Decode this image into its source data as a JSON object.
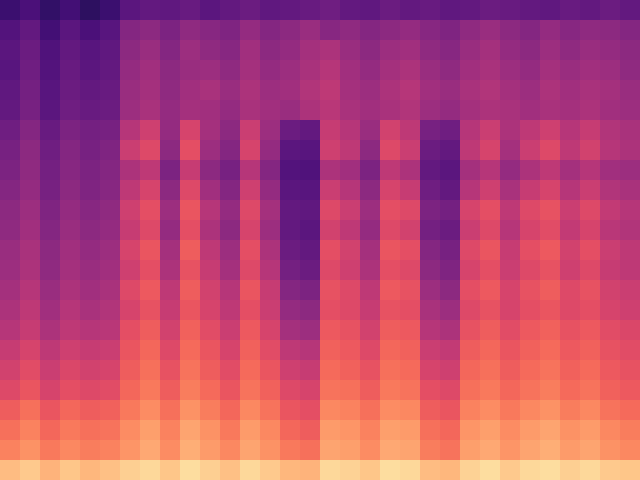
{
  "chart_data": {
    "type": "heatmap",
    "color": "magma",
    "tick_labels": false,
    "color_range": [
      0,
      1
    ],
    "cells": [
      [
        0.2,
        0.24,
        0.18,
        0.22,
        0.17,
        0.2,
        0.28,
        0.3,
        0.29,
        0.31,
        0.28,
        0.3,
        0.32,
        0.29,
        0.3,
        0.31,
        0.33,
        0.3,
        0.29,
        0.32,
        0.3,
        0.31,
        0.29,
        0.3,
        0.32,
        0.31,
        0.3,
        0.29,
        0.31,
        0.3,
        0.32,
        0.3
      ],
      [
        0.26,
        0.3,
        0.22,
        0.28,
        0.24,
        0.27,
        0.38,
        0.4,
        0.36,
        0.41,
        0.39,
        0.37,
        0.42,
        0.38,
        0.4,
        0.43,
        0.39,
        0.41,
        0.38,
        0.4,
        0.42,
        0.39,
        0.37,
        0.41,
        0.43,
        0.4,
        0.38,
        0.42,
        0.39,
        0.41,
        0.4,
        0.38
      ],
      [
        0.28,
        0.32,
        0.25,
        0.3,
        0.27,
        0.29,
        0.4,
        0.43,
        0.38,
        0.44,
        0.41,
        0.39,
        0.45,
        0.4,
        0.42,
        0.46,
        0.48,
        0.43,
        0.4,
        0.44,
        0.45,
        0.41,
        0.39,
        0.43,
        0.46,
        0.42,
        0.4,
        0.44,
        0.41,
        0.43,
        0.42,
        0.4
      ],
      [
        0.27,
        0.33,
        0.26,
        0.31,
        0.28,
        0.3,
        0.42,
        0.45,
        0.4,
        0.43,
        0.44,
        0.41,
        0.46,
        0.42,
        0.44,
        0.47,
        0.5,
        0.45,
        0.42,
        0.46,
        0.48,
        0.43,
        0.41,
        0.45,
        0.47,
        0.44,
        0.42,
        0.46,
        0.43,
        0.45,
        0.44,
        0.41
      ],
      [
        0.29,
        0.34,
        0.27,
        0.32,
        0.3,
        0.31,
        0.43,
        0.46,
        0.41,
        0.45,
        0.47,
        0.43,
        0.48,
        0.44,
        0.45,
        0.49,
        0.52,
        0.46,
        0.44,
        0.48,
        0.5,
        0.45,
        0.43,
        0.47,
        0.49,
        0.46,
        0.44,
        0.48,
        0.45,
        0.47,
        0.46,
        0.43
      ],
      [
        0.3,
        0.35,
        0.28,
        0.33,
        0.31,
        0.32,
        0.44,
        0.47,
        0.42,
        0.46,
        0.45,
        0.42,
        0.47,
        0.45,
        0.43,
        0.48,
        0.51,
        0.47,
        0.45,
        0.47,
        0.49,
        0.44,
        0.42,
        0.46,
        0.48,
        0.47,
        0.45,
        0.47,
        0.46,
        0.48,
        0.45,
        0.44
      ],
      [
        0.33,
        0.38,
        0.31,
        0.36,
        0.34,
        0.35,
        0.5,
        0.56,
        0.42,
        0.58,
        0.46,
        0.4,
        0.55,
        0.44,
        0.32,
        0.3,
        0.54,
        0.5,
        0.43,
        0.57,
        0.52,
        0.35,
        0.33,
        0.5,
        0.55,
        0.48,
        0.52,
        0.56,
        0.5,
        0.54,
        0.49,
        0.47
      ],
      [
        0.35,
        0.4,
        0.33,
        0.38,
        0.35,
        0.37,
        0.55,
        0.6,
        0.4,
        0.62,
        0.44,
        0.38,
        0.58,
        0.42,
        0.28,
        0.27,
        0.56,
        0.52,
        0.4,
        0.6,
        0.55,
        0.32,
        0.3,
        0.52,
        0.58,
        0.46,
        0.55,
        0.6,
        0.52,
        0.57,
        0.5,
        0.48
      ],
      [
        0.36,
        0.41,
        0.34,
        0.39,
        0.36,
        0.38,
        0.48,
        0.52,
        0.36,
        0.54,
        0.4,
        0.35,
        0.5,
        0.38,
        0.26,
        0.25,
        0.48,
        0.45,
        0.36,
        0.52,
        0.48,
        0.3,
        0.28,
        0.46,
        0.5,
        0.42,
        0.48,
        0.52,
        0.46,
        0.5,
        0.45,
        0.44
      ],
      [
        0.38,
        0.42,
        0.35,
        0.4,
        0.37,
        0.39,
        0.52,
        0.58,
        0.4,
        0.6,
        0.45,
        0.38,
        0.56,
        0.42,
        0.28,
        0.27,
        0.55,
        0.5,
        0.4,
        0.58,
        0.54,
        0.33,
        0.3,
        0.5,
        0.56,
        0.47,
        0.54,
        0.58,
        0.5,
        0.55,
        0.49,
        0.47
      ],
      [
        0.4,
        0.44,
        0.37,
        0.42,
        0.39,
        0.41,
        0.56,
        0.62,
        0.44,
        0.64,
        0.5,
        0.42,
        0.6,
        0.46,
        0.3,
        0.29,
        0.6,
        0.55,
        0.44,
        0.62,
        0.6,
        0.36,
        0.34,
        0.58,
        0.62,
        0.52,
        0.6,
        0.63,
        0.55,
        0.6,
        0.53,
        0.5
      ],
      [
        0.41,
        0.45,
        0.38,
        0.43,
        0.4,
        0.42,
        0.54,
        0.6,
        0.42,
        0.62,
        0.48,
        0.4,
        0.58,
        0.44,
        0.3,
        0.28,
        0.57,
        0.52,
        0.42,
        0.6,
        0.57,
        0.34,
        0.32,
        0.55,
        0.6,
        0.5,
        0.58,
        0.61,
        0.53,
        0.58,
        0.51,
        0.49
      ],
      [
        0.43,
        0.47,
        0.4,
        0.45,
        0.42,
        0.44,
        0.58,
        0.64,
        0.46,
        0.66,
        0.52,
        0.44,
        0.62,
        0.48,
        0.32,
        0.3,
        0.62,
        0.57,
        0.46,
        0.64,
        0.62,
        0.38,
        0.35,
        0.6,
        0.64,
        0.54,
        0.62,
        0.65,
        0.57,
        0.62,
        0.55,
        0.52
      ],
      [
        0.44,
        0.48,
        0.41,
        0.46,
        0.43,
        0.45,
        0.56,
        0.62,
        0.48,
        0.63,
        0.54,
        0.46,
        0.6,
        0.5,
        0.34,
        0.32,
        0.6,
        0.56,
        0.48,
        0.62,
        0.6,
        0.4,
        0.37,
        0.58,
        0.62,
        0.55,
        0.6,
        0.63,
        0.56,
        0.6,
        0.54,
        0.52
      ],
      [
        0.46,
        0.5,
        0.43,
        0.48,
        0.45,
        0.47,
        0.6,
        0.65,
        0.52,
        0.66,
        0.57,
        0.5,
        0.64,
        0.54,
        0.38,
        0.36,
        0.63,
        0.6,
        0.52,
        0.65,
        0.63,
        0.44,
        0.4,
        0.62,
        0.65,
        0.58,
        0.63,
        0.66,
        0.6,
        0.63,
        0.57,
        0.55
      ],
      [
        0.48,
        0.52,
        0.45,
        0.5,
        0.47,
        0.49,
        0.58,
        0.63,
        0.54,
        0.64,
        0.58,
        0.52,
        0.62,
        0.55,
        0.42,
        0.4,
        0.62,
        0.6,
        0.54,
        0.63,
        0.62,
        0.47,
        0.44,
        0.6,
        0.63,
        0.58,
        0.62,
        0.64,
        0.6,
        0.62,
        0.58,
        0.56
      ],
      [
        0.5,
        0.54,
        0.48,
        0.52,
        0.5,
        0.51,
        0.62,
        0.66,
        0.57,
        0.67,
        0.61,
        0.55,
        0.65,
        0.58,
        0.46,
        0.44,
        0.65,
        0.63,
        0.57,
        0.66,
        0.65,
        0.5,
        0.48,
        0.63,
        0.66,
        0.61,
        0.65,
        0.67,
        0.63,
        0.65,
        0.61,
        0.59
      ],
      [
        0.54,
        0.58,
        0.52,
        0.56,
        0.54,
        0.55,
        0.64,
        0.68,
        0.6,
        0.69,
        0.64,
        0.58,
        0.67,
        0.61,
        0.52,
        0.5,
        0.67,
        0.65,
        0.6,
        0.68,
        0.67,
        0.55,
        0.53,
        0.66,
        0.68,
        0.64,
        0.67,
        0.69,
        0.65,
        0.67,
        0.63,
        0.61
      ],
      [
        0.57,
        0.61,
        0.55,
        0.59,
        0.57,
        0.58,
        0.66,
        0.7,
        0.63,
        0.71,
        0.66,
        0.61,
        0.69,
        0.64,
        0.56,
        0.54,
        0.69,
        0.67,
        0.63,
        0.7,
        0.69,
        0.58,
        0.56,
        0.68,
        0.7,
        0.66,
        0.69,
        0.71,
        0.67,
        0.69,
        0.65,
        0.63
      ],
      [
        0.6,
        0.64,
        0.58,
        0.62,
        0.6,
        0.61,
        0.68,
        0.72,
        0.66,
        0.73,
        0.69,
        0.64,
        0.71,
        0.67,
        0.6,
        0.58,
        0.71,
        0.7,
        0.66,
        0.72,
        0.71,
        0.62,
        0.6,
        0.7,
        0.72,
        0.68,
        0.71,
        0.73,
        0.69,
        0.71,
        0.67,
        0.65
      ],
      [
        0.66,
        0.7,
        0.64,
        0.68,
        0.66,
        0.67,
        0.72,
        0.76,
        0.7,
        0.77,
        0.73,
        0.68,
        0.75,
        0.71,
        0.64,
        0.62,
        0.75,
        0.74,
        0.7,
        0.76,
        0.75,
        0.66,
        0.64,
        0.74,
        0.76,
        0.72,
        0.75,
        0.77,
        0.73,
        0.75,
        0.71,
        0.69
      ],
      [
        0.7,
        0.74,
        0.68,
        0.72,
        0.7,
        0.71,
        0.76,
        0.8,
        0.74,
        0.81,
        0.77,
        0.72,
        0.79,
        0.75,
        0.68,
        0.66,
        0.79,
        0.78,
        0.74,
        0.8,
        0.79,
        0.7,
        0.68,
        0.78,
        0.8,
        0.76,
        0.79,
        0.81,
        0.77,
        0.79,
        0.75,
        0.73
      ],
      [
        0.74,
        0.77,
        0.72,
        0.75,
        0.73,
        0.74,
        0.78,
        0.82,
        0.76,
        0.83,
        0.79,
        0.75,
        0.81,
        0.77,
        0.72,
        0.7,
        0.81,
        0.8,
        0.76,
        0.82,
        0.81,
        0.73,
        0.71,
        0.8,
        0.82,
        0.78,
        0.81,
        0.83,
        0.79,
        0.81,
        0.77,
        0.75
      ],
      [
        0.86,
        0.89,
        0.84,
        0.88,
        0.85,
        0.87,
        0.9,
        0.92,
        0.88,
        0.93,
        0.9,
        0.87,
        0.92,
        0.89,
        0.85,
        0.84,
        0.92,
        0.91,
        0.88,
        0.93,
        0.92,
        0.86,
        0.85,
        0.91,
        0.93,
        0.89,
        0.92,
        0.93,
        0.9,
        0.92,
        0.89,
        0.88
      ]
    ]
  }
}
